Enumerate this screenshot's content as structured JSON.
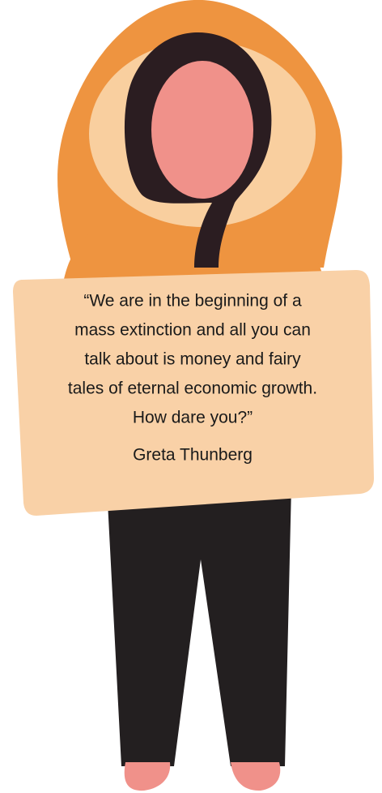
{
  "quote": {
    "lines": [
      "“We are in the beginning of a",
      "mass extinction and all you can",
      "talk about is money and fairy",
      "tales of eternal economic growth.",
      "How dare you?”"
    ],
    "author": "Greta Thunberg"
  }
}
